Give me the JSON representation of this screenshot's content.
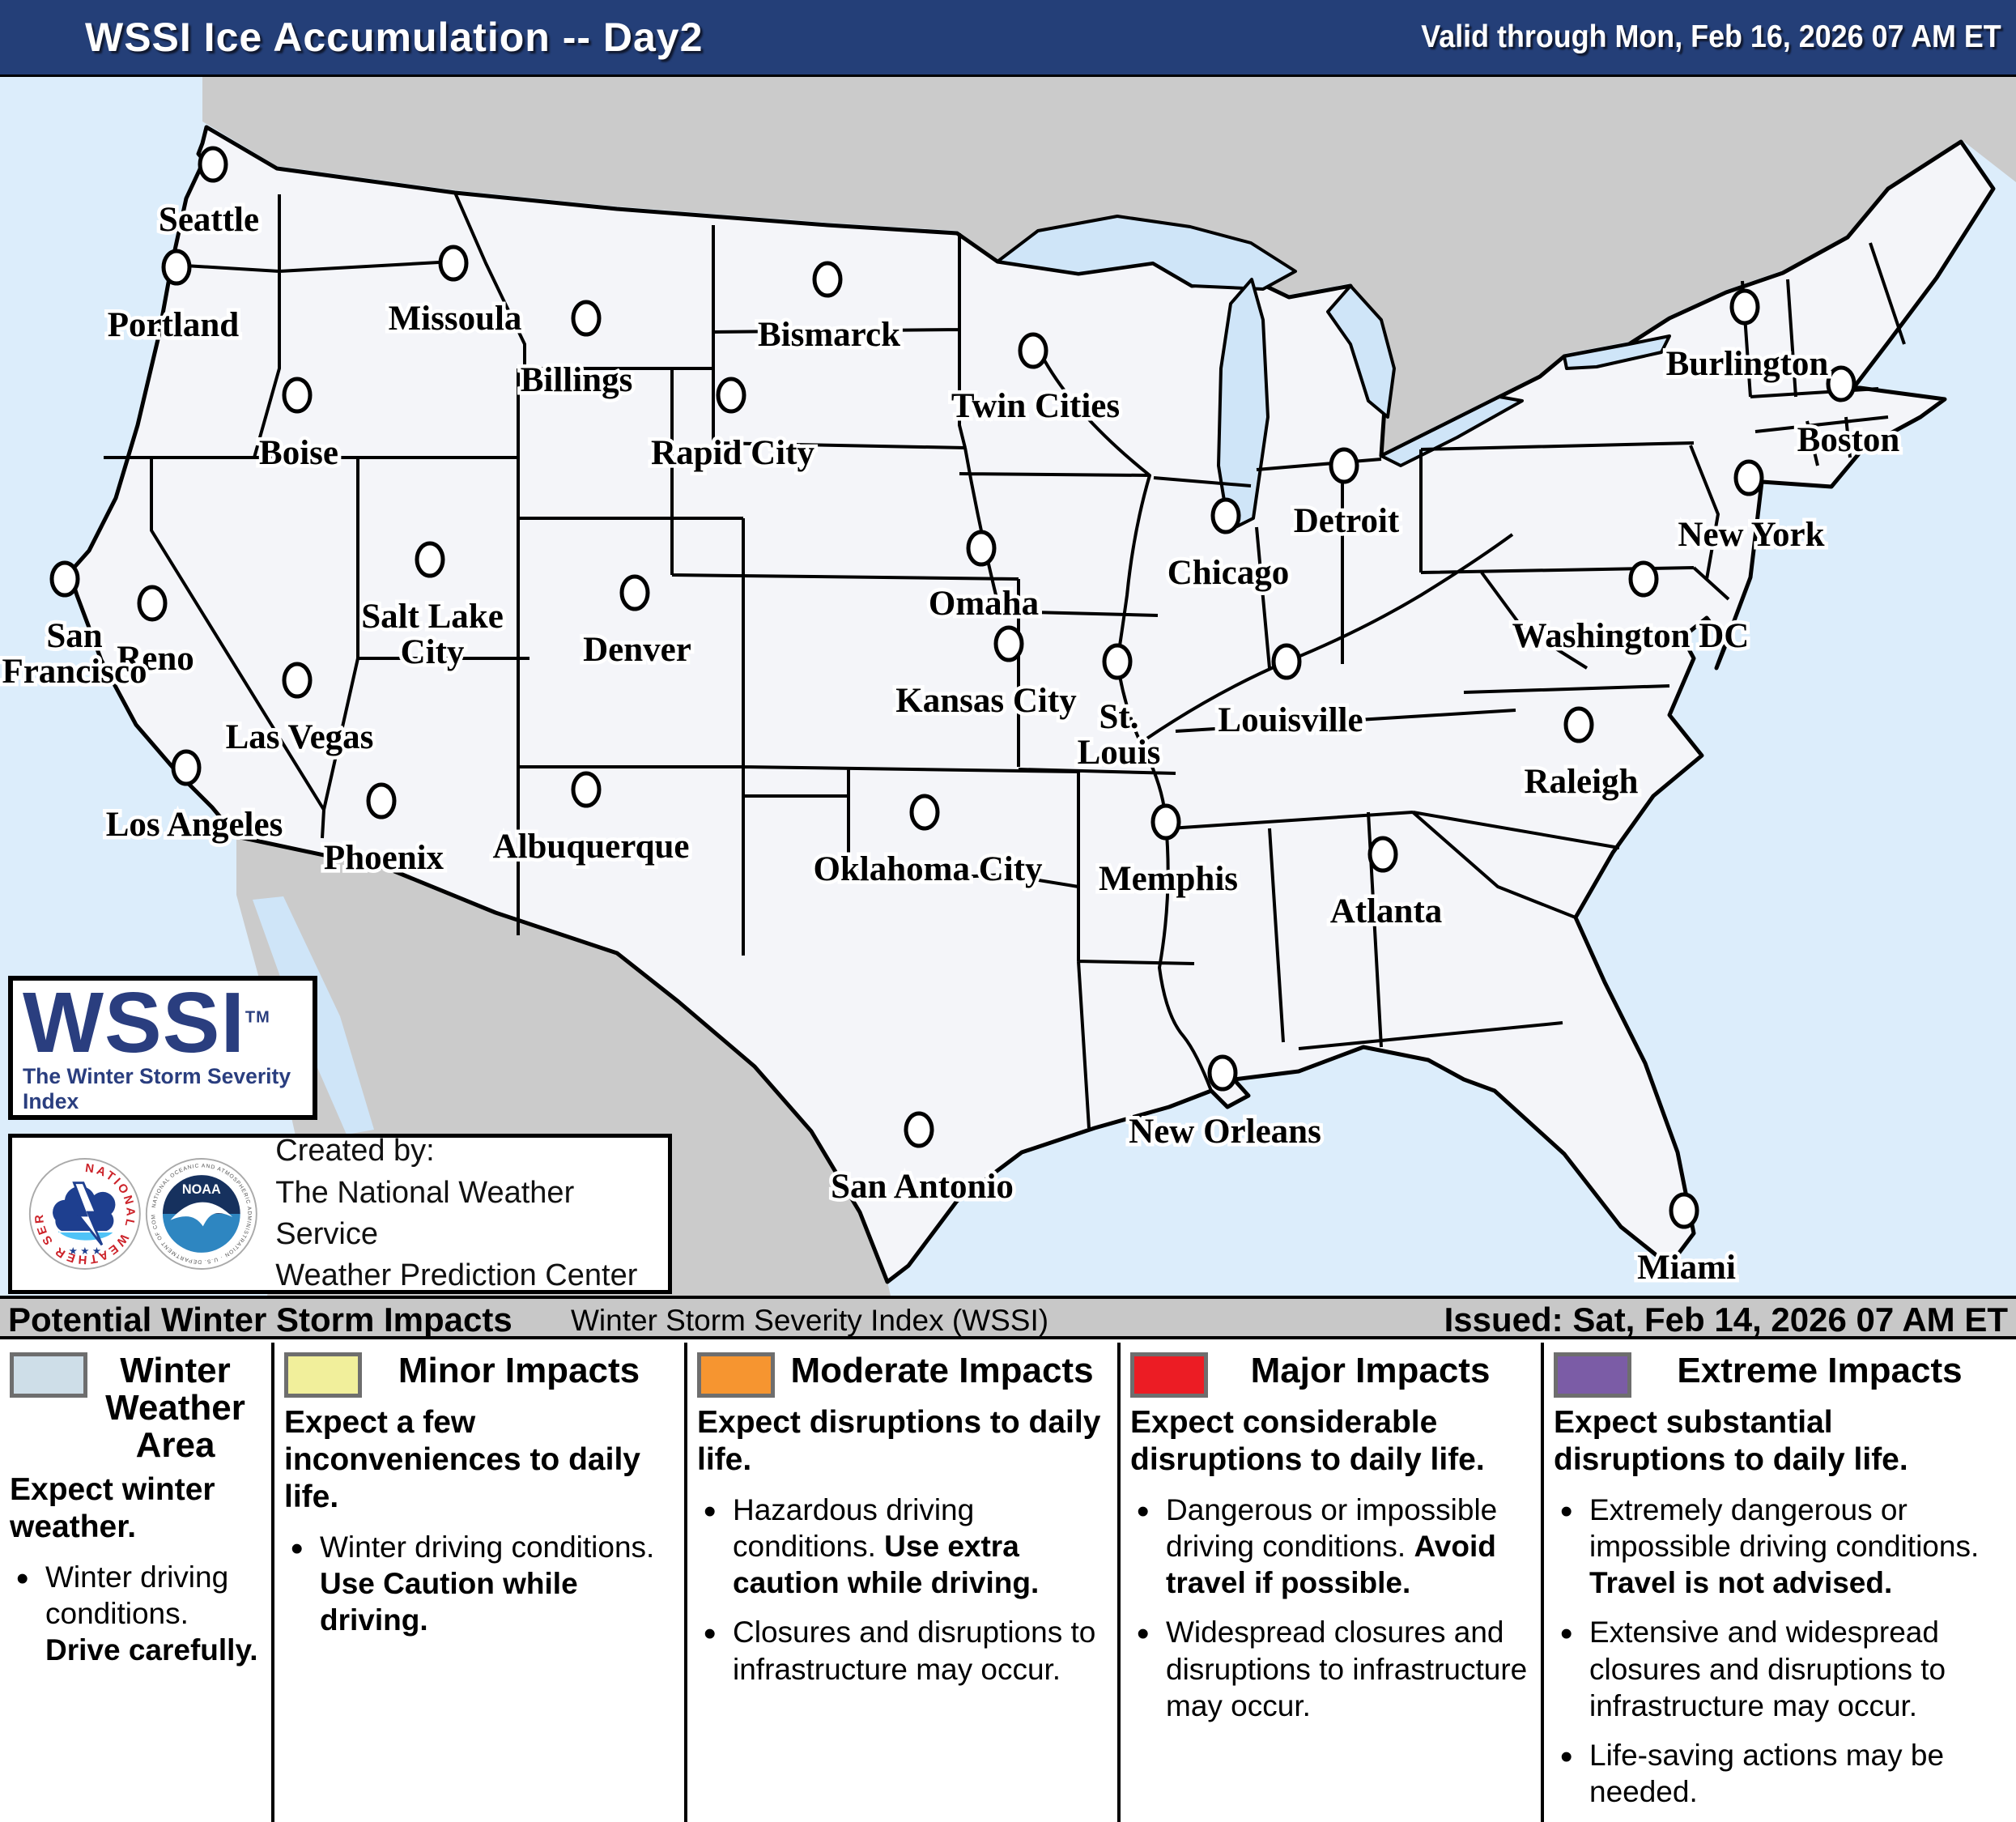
{
  "header": {
    "title": "WSSI Ice Accumulation -- Day2",
    "valid": "Valid through Mon, Feb 16, 2026 07 AM ET"
  },
  "issue_bar": {
    "left": "Potential Winter Storm Impacts",
    "center": "Winter Storm Severity Index (WSSI)",
    "right": "Issued: Sat, Feb 14, 2026 07 AM ET"
  },
  "wssi_logo": {
    "word": "WSSI",
    "tm": "TM",
    "subtitle": "The Winter Storm Severity Index",
    "scale_colors": [
      "#D8D5E2",
      "#EDEF9E",
      "#F6951F",
      "#EC1C24",
      "#7B5CA6"
    ]
  },
  "created_box": {
    "line1": "Created by:",
    "line2": "The National Weather Service",
    "line3": "Weather Prediction Center",
    "nws_ring": "NATIONAL WEATHER SERVICE",
    "nws_stars": "★ ★ ★",
    "noaa_word": "NOAA",
    "noaa_ring": "NATIONAL OCEANIC AND ATMOSPHERIC ADMINISTRATION · U.S. DEPARTMENT OF COMMERCE"
  },
  "colors": {
    "header_navy": "#243F78",
    "ocean": "#DCEDFB",
    "neighbor_land": "#CBCBCB",
    "us_fill": "#F4F5F9",
    "lake": "#CFE5F8",
    "gray_bar": "#C8C8C8",
    "winter_weather": "#CEDEE8",
    "minor": "#F1EF9B",
    "moderate": "#F69530",
    "major": "#EC1C24",
    "extreme": "#7B5CA6"
  },
  "map": {
    "cities": [
      {
        "name": "Seattle",
        "marker": [
          263,
          108
        ],
        "label": [
          258,
          158
        ],
        "lines": [
          "Seattle"
        ]
      },
      {
        "name": "Portland",
        "marker": [
          218,
          235
        ],
        "label": [
          214,
          288
        ],
        "lines": [
          "Portland"
        ]
      },
      {
        "name": "Missoula",
        "marker": [
          560,
          230
        ],
        "label": [
          562,
          280
        ],
        "lines": [
          "Missoula"
        ]
      },
      {
        "name": "Boise",
        "marker": [
          367,
          393
        ],
        "label": [
          369,
          446
        ],
        "lines": [
          "Boise"
        ]
      },
      {
        "name": "Billings",
        "marker": [
          724,
          298
        ],
        "label": [
          712,
          356
        ],
        "lines": [
          "Billings"
        ]
      },
      {
        "name": "Bismarck",
        "marker": [
          1022,
          250
        ],
        "label": [
          1024,
          300
        ],
        "lines": [
          "Bismarck"
        ]
      },
      {
        "name": "Rapid City",
        "marker": [
          903,
          393
        ],
        "label": [
          905,
          446
        ],
        "lines": [
          "Rapid City"
        ]
      },
      {
        "name": "Twin Cities",
        "marker": [
          1276,
          338
        ],
        "label": [
          1279,
          388
        ],
        "lines": [
          "Twin Cities"
        ]
      },
      {
        "name": "Reno",
        "marker": [
          188,
          650
        ],
        "label": [
          192,
          700
        ],
        "lines": [
          "Reno"
        ]
      },
      {
        "name": "San Francisco",
        "marker": [
          80,
          620
        ],
        "label": [
          92,
          672
        ],
        "lines": [
          "San",
          "Francisco"
        ]
      },
      {
        "name": "Salt Lake City",
        "marker": [
          531,
          596
        ],
        "label": [
          534,
          648
        ],
        "lines": [
          "Salt Lake",
          "City"
        ]
      },
      {
        "name": "Las Vegas",
        "marker": [
          367,
          745
        ],
        "label": [
          370,
          797
        ],
        "lines": [
          "Las Vegas"
        ]
      },
      {
        "name": "Los Angeles",
        "marker": [
          230,
          853
        ],
        "label": [
          240,
          905
        ],
        "lines": [
          "Los Angeles"
        ]
      },
      {
        "name": "Phoenix",
        "marker": [
          471,
          894
        ],
        "label": [
          474,
          946
        ],
        "lines": [
          "Phoenix"
        ]
      },
      {
        "name": "Albuquerque",
        "marker": [
          724,
          880
        ],
        "label": [
          730,
          932
        ],
        "lines": [
          "Albuquerque"
        ]
      },
      {
        "name": "Denver",
        "marker": [
          784,
          637
        ],
        "label": [
          787,
          689
        ],
        "lines": [
          "Denver"
        ]
      },
      {
        "name": "Omaha",
        "marker": [
          1212,
          582
        ],
        "label": [
          1215,
          632
        ],
        "lines": [
          "Omaha"
        ]
      },
      {
        "name": "Kansas City",
        "marker": [
          1246,
          700
        ],
        "label": [
          1218,
          752
        ],
        "lines": [
          "Kansas City"
        ]
      },
      {
        "name": "Oklahoma City",
        "marker": [
          1142,
          908
        ],
        "label": [
          1146,
          960
        ],
        "lines": [
          "Oklahoma City"
        ]
      },
      {
        "name": "San Antonio",
        "marker": [
          1135,
          1300
        ],
        "label": [
          1139,
          1352
        ],
        "lines": [
          "San Antonio"
        ]
      },
      {
        "name": "Chicago",
        "marker": [
          1514,
          542
        ],
        "label": [
          1517,
          594
        ],
        "lines": [
          "Chicago"
        ]
      },
      {
        "name": "Detroit",
        "marker": [
          1660,
          480
        ],
        "label": [
          1663,
          530
        ],
        "lines": [
          "Detroit"
        ]
      },
      {
        "name": "St. Louis",
        "marker": [
          1380,
          722
        ],
        "label": [
          1382,
          772
        ],
        "lines": [
          "St.",
          "Louis"
        ]
      },
      {
        "name": "Louisville",
        "marker": [
          1589,
          722
        ],
        "label": [
          1594,
          776
        ],
        "lines": [
          "Louisville"
        ]
      },
      {
        "name": "Memphis",
        "marker": [
          1440,
          920
        ],
        "label": [
          1443,
          972
        ],
        "lines": [
          "Memphis"
        ]
      },
      {
        "name": "Atlanta",
        "marker": [
          1708,
          960
        ],
        "label": [
          1712,
          1012
        ],
        "lines": [
          "Atlanta"
        ]
      },
      {
        "name": "New Orleans",
        "marker": [
          1510,
          1230
        ],
        "label": [
          1513,
          1284
        ],
        "lines": [
          "New Orleans"
        ]
      },
      {
        "name": "Miami",
        "marker": [
          2080,
          1400
        ],
        "label": [
          2083,
          1452
        ],
        "lines": [
          "Miami"
        ]
      },
      {
        "name": "Raleigh",
        "marker": [
          1950,
          800
        ],
        "label": [
          1953,
          852
        ],
        "lines": [
          "Raleigh"
        ]
      },
      {
        "name": "Washington DC",
        "marker": [
          2030,
          620
        ],
        "label": [
          2014,
          672
        ],
        "lines": [
          "Washington DC"
        ]
      },
      {
        "name": "New York",
        "marker": [
          2160,
          495
        ],
        "label": [
          2163,
          547
        ],
        "lines": [
          "New York"
        ]
      },
      {
        "name": "Boston",
        "marker": [
          2274,
          379
        ],
        "label": [
          2283,
          430
        ],
        "lines": [
          "Boston"
        ]
      },
      {
        "name": "Burlington",
        "marker": [
          2155,
          284
        ],
        "label": [
          2158,
          336
        ],
        "lines": [
          "Burlington"
        ]
      }
    ]
  },
  "legend": {
    "columns": [
      {
        "id": "winter-weather-area",
        "swatch": "#CEDEE8",
        "title": "Winter Weather Area",
        "intro": [
          {
            "t": "Expect winter weather.",
            "b": true
          }
        ],
        "bullets": [
          [
            {
              "t": "Winter driving conditions. ",
              "b": false
            },
            {
              "t": "Drive carefully.",
              "b": true
            }
          ]
        ]
      },
      {
        "id": "minor-impacts",
        "swatch": "#F1EF9B",
        "title": "Minor Impacts",
        "intro": [
          {
            "t": "Expect a few inconveniences to daily life.",
            "b": true
          }
        ],
        "bullets": [
          [
            {
              "t": "Winter driving conditions. ",
              "b": false
            },
            {
              "t": "Use Caution while driving.",
              "b": true
            }
          ]
        ]
      },
      {
        "id": "moderate-impacts",
        "swatch": "#F69530",
        "title": "Moderate Impacts",
        "intro": [
          {
            "t": "Expect disruptions to daily life.",
            "b": true
          }
        ],
        "bullets": [
          [
            {
              "t": "Hazardous driving conditions. ",
              "b": false
            },
            {
              "t": "Use extra caution while driving.",
              "b": true
            }
          ],
          [
            {
              "t": "Closures and disruptions to infrastructure may occur.",
              "b": false
            }
          ]
        ]
      },
      {
        "id": "major-impacts",
        "swatch": "#EC1C24",
        "title": "Major Impacts",
        "intro": [
          {
            "t": "Expect considerable disruptions to daily life.",
            "b": true
          }
        ],
        "bullets": [
          [
            {
              "t": "Dangerous or impossible driving conditions. ",
              "b": false
            },
            {
              "t": "Avoid travel if possible.",
              "b": true
            }
          ],
          [
            {
              "t": "Widespread closures and disruptions to infrastructure may occur.",
              "b": false
            }
          ]
        ]
      },
      {
        "id": "extreme-impacts",
        "swatch": "#7B5CA6",
        "title": "Extreme Impacts",
        "intro": [
          {
            "t": "Expect substantial disruptions to daily life.",
            "b": true
          }
        ],
        "bullets": [
          [
            {
              "t": "Extremely dangerous or impossible driving conditions. ",
              "b": false
            },
            {
              "t": "Travel is not advised.",
              "b": true
            }
          ],
          [
            {
              "t": "Extensive and widespread closures and disruptions to infrastructure may occur.",
              "b": false
            }
          ],
          [
            {
              "t": "Life-saving actions may be needed.",
              "b": false
            }
          ]
        ]
      }
    ]
  }
}
